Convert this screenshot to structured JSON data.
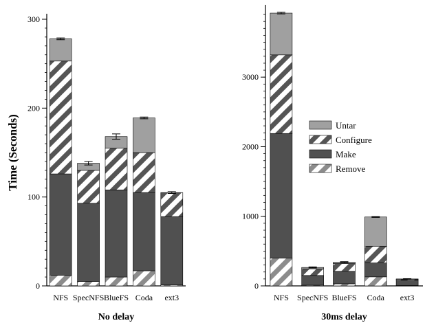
{
  "chart_data": [
    {
      "type": "bar",
      "stacked": true,
      "title": "No delay",
      "ylabel": "Time (Seconds)",
      "ylim": [
        0,
        300
      ],
      "yticks": [
        0,
        100,
        200,
        300
      ],
      "categories": [
        "NFS",
        "SpecNFS",
        "BlueFS",
        "Coda",
        "ext3"
      ],
      "series": [
        {
          "name": "Remove",
          "pattern": "hatch-light",
          "values": [
            12,
            5,
            10,
            17,
            1
          ]
        },
        {
          "name": "Make",
          "pattern": "solid-dark",
          "values": [
            114,
            88,
            98,
            88,
            77
          ]
        },
        {
          "name": "Configure",
          "pattern": "hatch-dark",
          "values": [
            127,
            37,
            47,
            45,
            27
          ]
        },
        {
          "name": "Untar",
          "pattern": "solid-gray",
          "values": [
            25,
            8,
            13,
            39,
            0
          ]
        }
      ],
      "error_bars": [
        1,
        2,
        3,
        1,
        1
      ]
    },
    {
      "type": "bar",
      "stacked": true,
      "title": "30ms delay",
      "ylabel": "",
      "ylim": [
        0,
        3960
      ],
      "yticks": [
        0,
        1000,
        2000,
        3000
      ],
      "categories": [
        "NFS",
        "SpecNFS",
        "BlueFS",
        "Coda",
        "ext3"
      ],
      "series": [
        {
          "name": "Remove",
          "pattern": "hatch-light",
          "values": [
            400,
            10,
            30,
            130,
            5
          ]
        },
        {
          "name": "Make",
          "pattern": "solid-dark",
          "values": [
            1790,
            140,
            180,
            200,
            75
          ]
        },
        {
          "name": "Configure",
          "pattern": "hatch-dark",
          "values": [
            1130,
            95,
            110,
            240,
            15
          ]
        },
        {
          "name": "Untar",
          "pattern": "solid-gray",
          "values": [
            600,
            20,
            20,
            420,
            5
          ]
        }
      ],
      "error_bars": [
        12,
        8,
        8,
        6,
        4
      ]
    }
  ],
  "legend": {
    "placement": "right panel, middle",
    "entries": [
      {
        "name": "Untar",
        "pattern": "solid-gray"
      },
      {
        "name": "Configure",
        "pattern": "hatch-dark"
      },
      {
        "name": "Make",
        "pattern": "solid-dark"
      },
      {
        "name": "Remove",
        "pattern": "hatch-light"
      }
    ]
  },
  "colors": {
    "solid_dark": "#505050",
    "solid_gray": "#a0a0a0",
    "hatch_stripe": "#555555",
    "hatch_light_stripe": "#8c8c8c",
    "hatch_background": "#ffffff",
    "axis": "#000000"
  }
}
